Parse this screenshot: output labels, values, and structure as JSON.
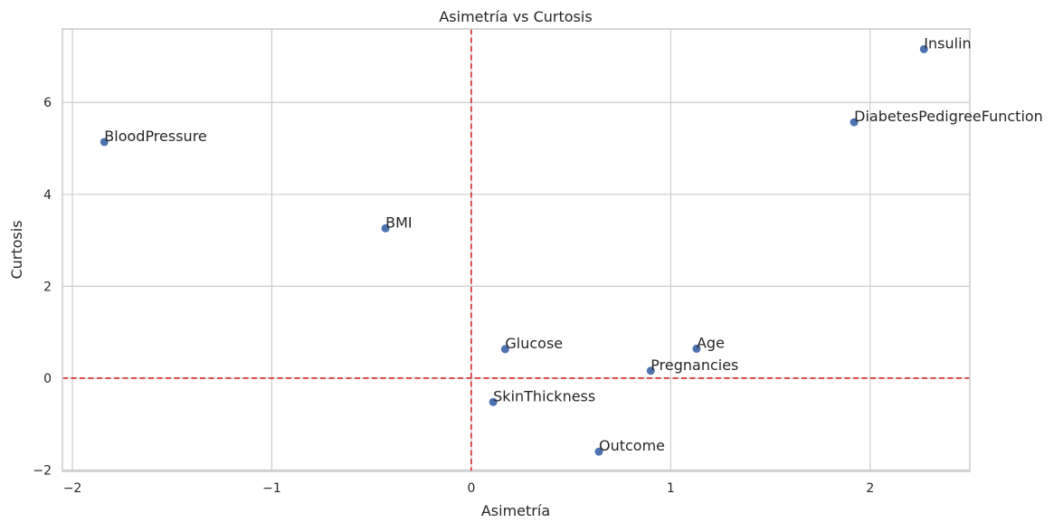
{
  "chart_data": {
    "type": "scatter",
    "title": "Asimetría vs Curtosis",
    "xlabel": "Asimetría",
    "ylabel": "Curtosis",
    "xlim": [
      -2.05,
      2.5
    ],
    "ylim": [
      -2.03,
      7.6
    ],
    "xticks": [
      -2,
      -1,
      0,
      1,
      2
    ],
    "yticks": [
      -2,
      0,
      2,
      4,
      6
    ],
    "xtick_labels": [
      "−2",
      "−1",
      "0",
      "1",
      "2"
    ],
    "ytick_labels": [
      "−2",
      "0",
      "2",
      "4",
      "6"
    ],
    "grid": true,
    "reference_lines": [
      {
        "axis": "x",
        "value": 0,
        "color": "#d62728",
        "style": "dashed"
      },
      {
        "axis": "y",
        "value": 0,
        "color": "#d62728",
        "style": "dashed"
      }
    ],
    "point_color": "#4c72b0",
    "points": [
      {
        "label": "Pregnancies",
        "x": 0.9,
        "y": 0.16
      },
      {
        "label": "Glucose",
        "x": 0.17,
        "y": 0.63
      },
      {
        "label": "BloodPressure",
        "x": -1.84,
        "y": 5.14
      },
      {
        "label": "SkinThickness",
        "x": 0.11,
        "y": -0.52
      },
      {
        "label": "Insulin",
        "x": 2.27,
        "y": 7.16
      },
      {
        "label": "BMI",
        "x": -0.43,
        "y": 3.26
      },
      {
        "label": "DiabetesPedigreeFunction",
        "x": 1.92,
        "y": 5.57
      },
      {
        "label": "Age",
        "x": 1.13,
        "y": 0.64
      },
      {
        "label": "Outcome",
        "x": 0.64,
        "y": -1.6
      }
    ]
  }
}
